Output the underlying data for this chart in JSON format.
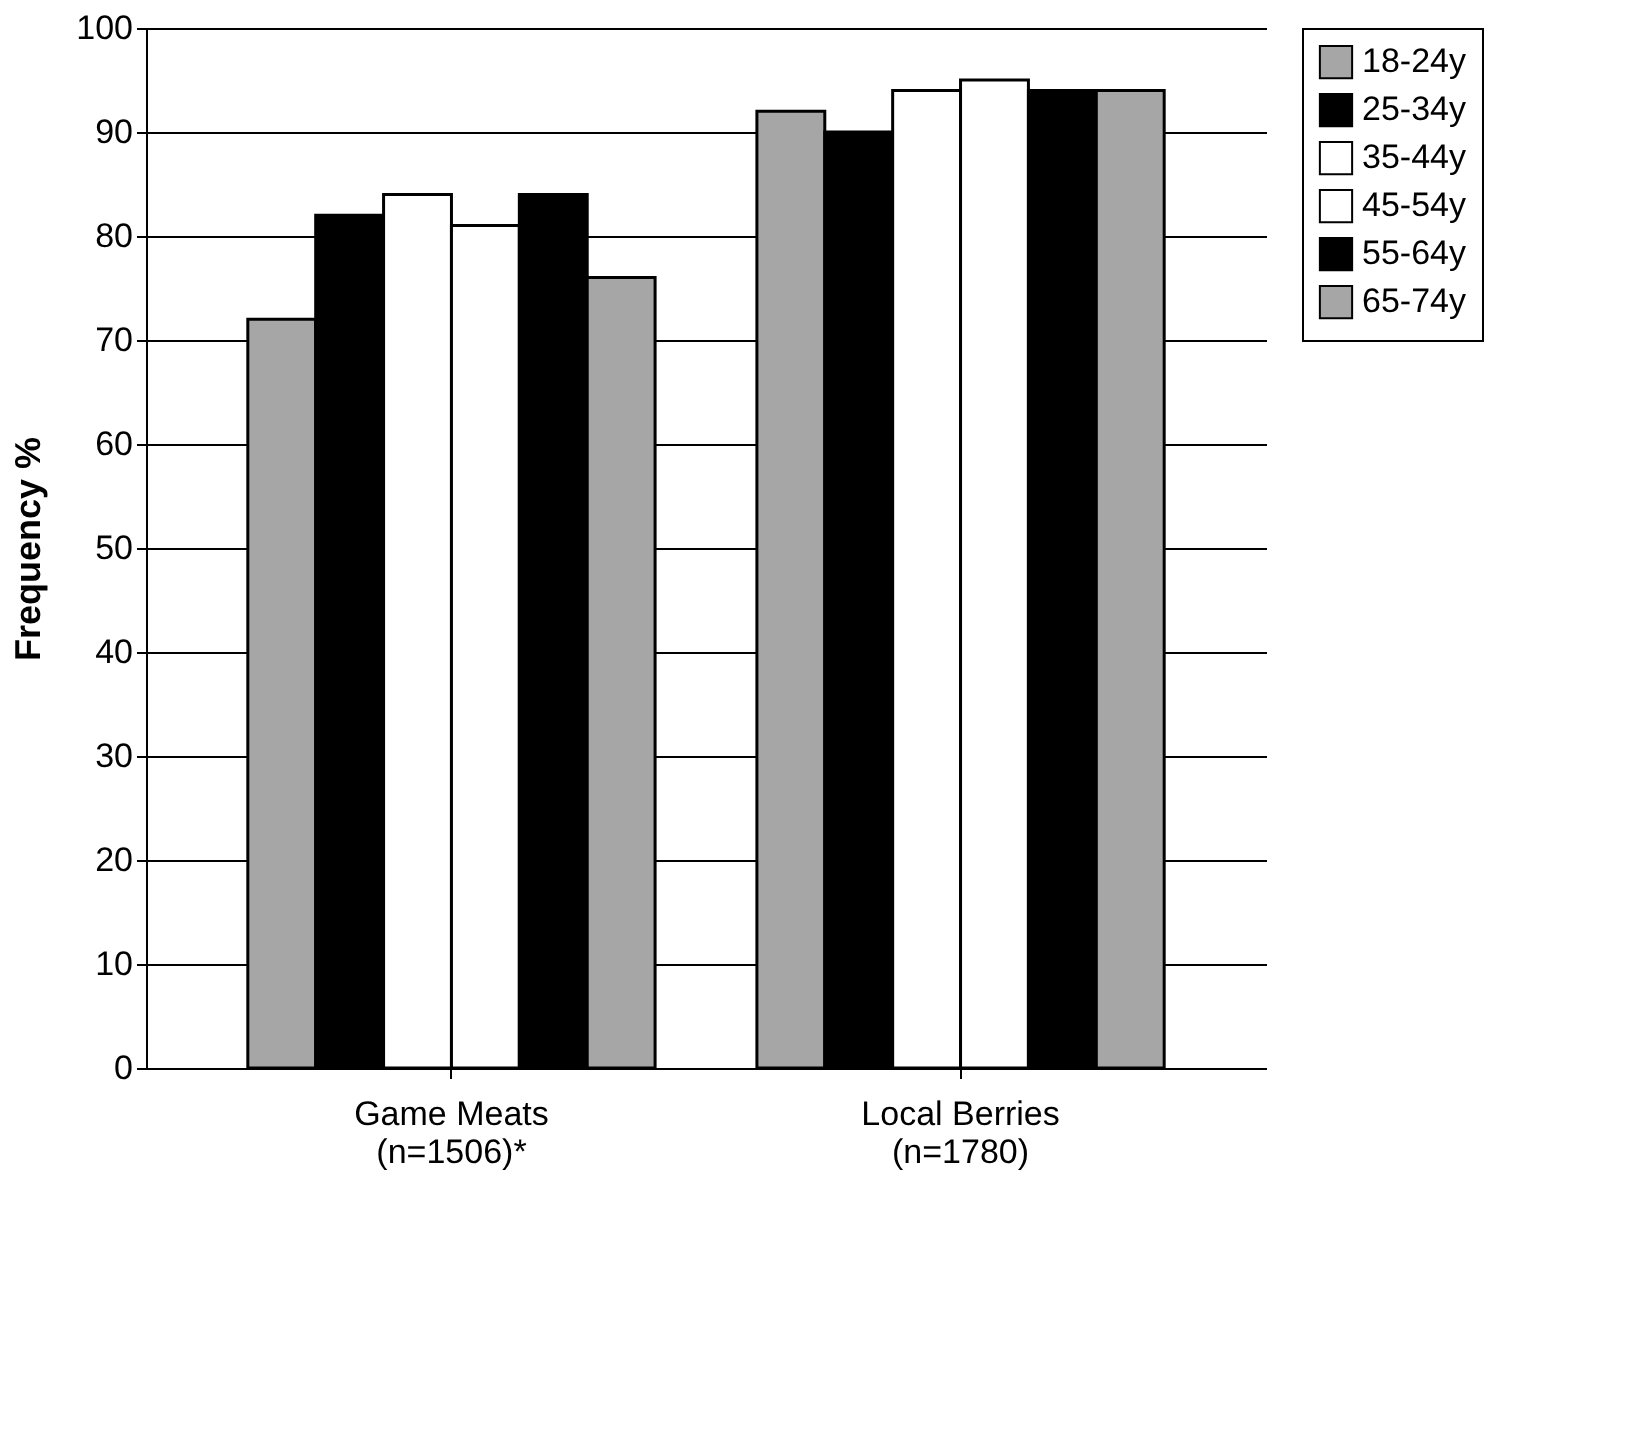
{
  "chart_data": {
    "type": "bar",
    "ylabel": "Frequency %",
    "categories": [
      "Game Meats\n(n=1506)*",
      "Local Berries\n(n=1780)"
    ],
    "series": [
      {
        "name": "18-24y",
        "color": "#a6a6a6",
        "values": [
          72,
          92
        ]
      },
      {
        "name": "25-34y",
        "color": "#000000",
        "values": [
          82,
          90
        ]
      },
      {
        "name": "35-44y",
        "color": "#ffffff",
        "values": [
          84,
          94
        ]
      },
      {
        "name": "45-54y",
        "color": "#ffffff",
        "values": [
          81,
          95
        ]
      },
      {
        "name": "55-64y",
        "color": "#000000",
        "values": [
          84,
          94
        ]
      },
      {
        "name": "65-74y",
        "color": "#a6a6a6",
        "values": [
          76,
          94
        ]
      }
    ],
    "ylim": [
      0,
      100
    ],
    "yticks": [
      0,
      10,
      20,
      30,
      40,
      50,
      60,
      70,
      80,
      90,
      100
    ],
    "grid": "y",
    "legend": "right"
  }
}
